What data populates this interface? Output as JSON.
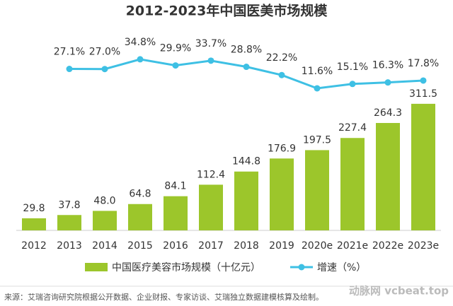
{
  "chart_data": {
    "type": "bar-line",
    "title": "2012-2023年中国医美市场规模",
    "categories": [
      "2012",
      "2013",
      "2014",
      "2015",
      "2016",
      "2017",
      "2018",
      "2019",
      "2020e",
      "2021e",
      "2022e",
      "2023e"
    ],
    "series": [
      {
        "name": "中国医疗美容市场规模（十亿元）",
        "type": "bar",
        "color": "#9cc62b",
        "values": [
          29.8,
          37.8,
          48.0,
          64.8,
          84.1,
          112.4,
          144.8,
          176.9,
          197.5,
          227.4,
          264.3,
          311.5
        ],
        "value_labels": [
          "29.8",
          "37.8",
          "48.0",
          "64.8",
          "84.1",
          "112.4",
          "144.8",
          "176.9",
          "197.5",
          "227.4",
          "264.3",
          "311.5"
        ]
      },
      {
        "name": "增速（%）",
        "type": "line",
        "axis": "y2",
        "color": "#3ec0e4",
        "values": [
          null,
          27.1,
          27.0,
          34.8,
          29.9,
          33.7,
          28.8,
          22.2,
          11.6,
          15.1,
          16.3,
          17.8
        ],
        "value_labels": [
          null,
          "27.1%",
          "27.0%",
          "34.8%",
          "29.9%",
          "33.7%",
          "28.8%",
          "22.2%",
          "11.6%",
          "15.1%",
          "16.3%",
          "17.8%"
        ]
      }
    ],
    "ylim": [
      0,
      320
    ],
    "y2lim": [
      0,
      40
    ],
    "source": "来源：艾瑞咨询研究院根据公开数据、企业财报、专家访谈、艾瑞独立数据建模核算及绘制。",
    "watermark": "动脉网 vcbeat.top"
  }
}
